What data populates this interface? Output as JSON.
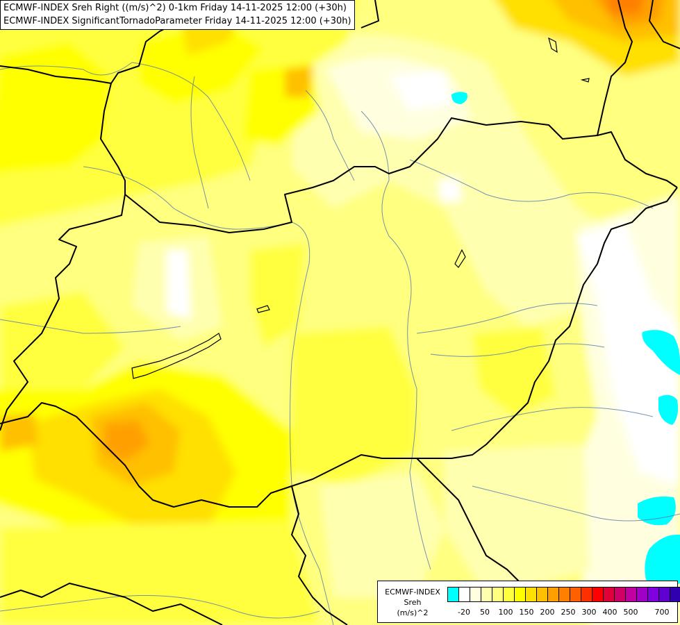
{
  "titles": {
    "line1": "ECMWF-INDEX Sreh Right ((m/s)^2) 0-1km Friday 14-11-2025 12:00 (+30h)",
    "line2": "ECMWF-INDEX SignificantTornadoParameter Friday 14-11-2025 12:00 (+30h)"
  },
  "legend": {
    "title_lines": [
      "ECMWF-INDEX",
      "Sreh",
      "(m/s)^2"
    ],
    "colors": [
      "#00ffff",
      "#ffffff",
      "#ffffe0",
      "#ffffb0",
      "#ffff80",
      "#ffff40",
      "#ffff00",
      "#ffe000",
      "#ffc000",
      "#ffa000",
      "#ff8000",
      "#ff6000",
      "#ff3000",
      "#ff0000",
      "#e0003a",
      "#d0006a",
      "#c000a0",
      "#a000c8",
      "#8000e0",
      "#6000d0",
      "#3000b0",
      "#000080"
    ],
    "ticks": [
      "-20",
      "50",
      "100",
      "150",
      "200",
      "250",
      "300",
      "400",
      "500",
      "700"
    ]
  }
}
